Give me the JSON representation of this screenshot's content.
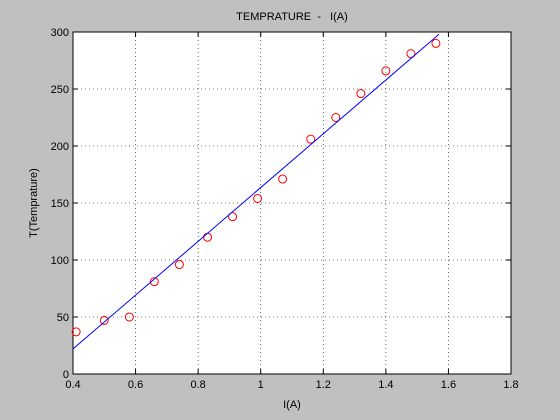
{
  "chart_data": {
    "type": "scatter",
    "title": "TEMPRATURE  -   I(A)",
    "x_label": "I(A)",
    "y_label": "T(Temprature)",
    "series": [
      {
        "type": "scatter",
        "color": "#ff0000",
        "x": [
          0.41,
          0.5,
          0.58,
          0.66,
          0.74,
          0.83,
          0.91,
          0.99,
          1.07,
          1.16,
          1.24,
          1.32,
          1.4,
          1.48,
          1.56
        ],
        "values": [
          37,
          47,
          50,
          81,
          96,
          120,
          138,
          154,
          171,
          206,
          225,
          246,
          266,
          281,
          290
        ]
      },
      {
        "type": "line",
        "color": "#0000ff",
        "x": [
          0.4,
          1.57
        ],
        "values": [
          22,
          298
        ]
      }
    ],
    "xlim": [
      0.4,
      1.8
    ],
    "xticks": [
      0.4,
      0.6,
      0.8,
      1,
      1.2,
      1.4,
      1.6,
      1.8
    ],
    "ylim": [
      0,
      300
    ],
    "yticks": [
      0,
      50,
      100,
      150,
      200,
      250,
      300
    ],
    "grid": true
  }
}
